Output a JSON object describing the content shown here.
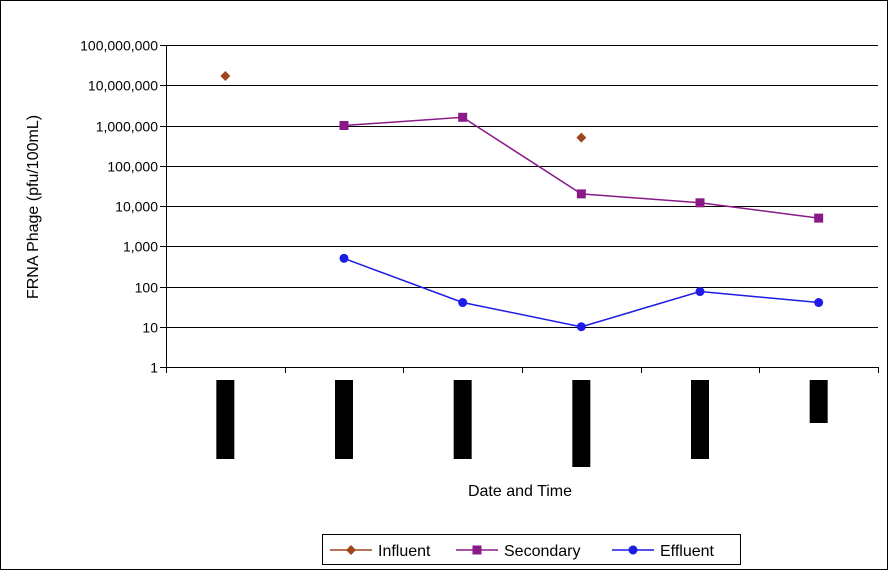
{
  "chart_data": {
    "type": "line",
    "title": "",
    "xlabel": "Date and Time",
    "ylabel": "FRNA Phage (pfu/100mL)",
    "y_scale": "log",
    "ylim": [
      1,
      100000000
    ],
    "y_ticks": [
      {
        "value": 1,
        "label": "1"
      },
      {
        "value": 10,
        "label": "10"
      },
      {
        "value": 100,
        "label": "100"
      },
      {
        "value": 1000,
        "label": "1,000"
      },
      {
        "value": 10000,
        "label": "10,000"
      },
      {
        "value": 100000,
        "label": "100,000"
      },
      {
        "value": 1000000,
        "label": "1,000,000"
      },
      {
        "value": 10000000,
        "label": "10,000,000"
      },
      {
        "value": 100000000,
        "label": "100,000,000"
      }
    ],
    "grid": "horizontal",
    "legend_position": "bottom",
    "category_count": 6,
    "category_labels_redacted": true,
    "series": [
      {
        "name": "Influent",
        "marker": "diamond",
        "color": "#a0461e",
        "connected": false,
        "values": [
          17000000,
          null,
          null,
          500000,
          null,
          null
        ]
      },
      {
        "name": "Secondary",
        "marker": "square",
        "color": "#8b1a89",
        "connected": true,
        "values": [
          null,
          1000000,
          1600000,
          20000,
          12000,
          5000
        ]
      },
      {
        "name": "Effluent",
        "marker": "circle",
        "color": "#1c1ce6",
        "connected": true,
        "values": [
          null,
          500,
          40,
          10,
          75,
          40
        ]
      }
    ]
  }
}
